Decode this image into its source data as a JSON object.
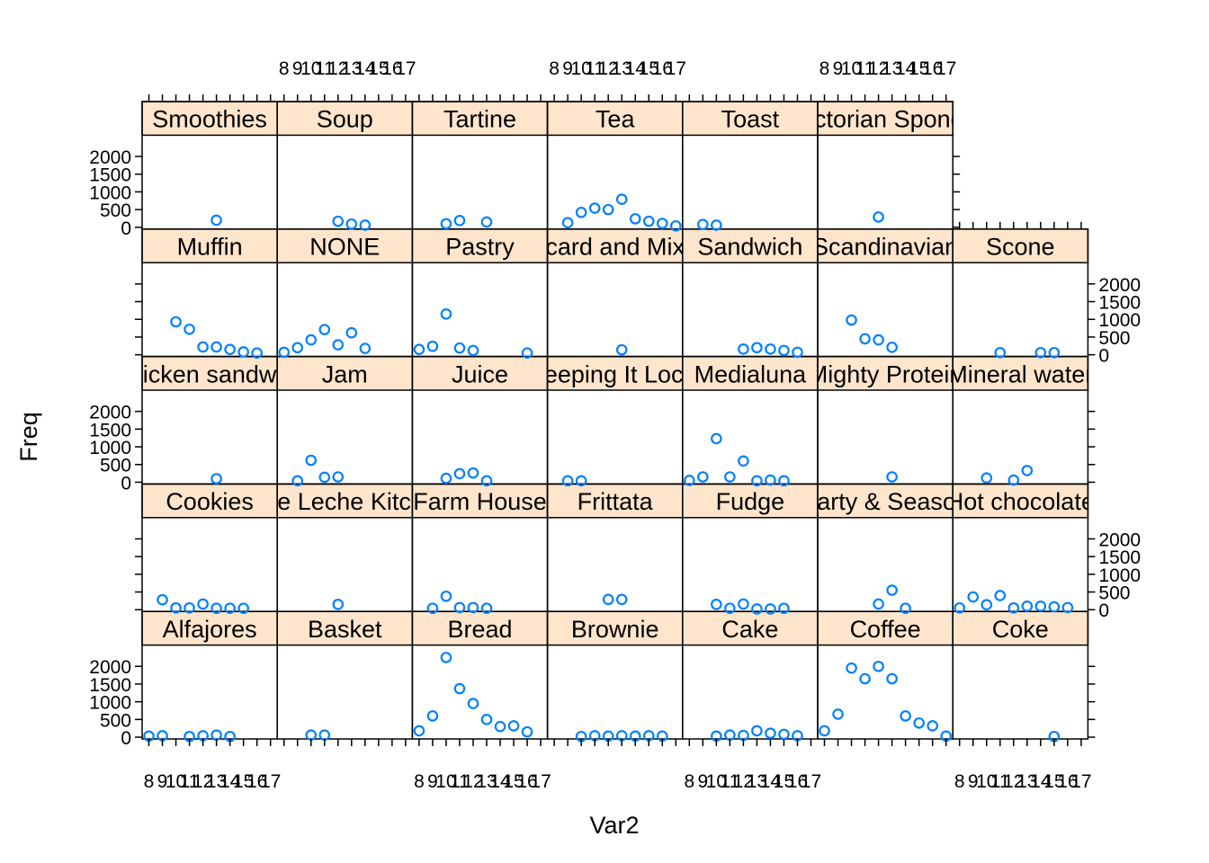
{
  "chart_data": {
    "type": "scatter",
    "layout": "lattice panels, 7 columns x 5 rows",
    "xlabel": "Var2",
    "ylabel": "Freq",
    "x_tick_labels": [
      "8",
      "9",
      "10",
      "11",
      "12",
      "13",
      "14",
      "15",
      "16",
      "17"
    ],
    "y_tick_labels": [
      "0",
      "500",
      "1000",
      "1500",
      "2000"
    ],
    "ylim": [
      -50,
      2600
    ],
    "xlim": [
      7.5,
      17.5
    ],
    "strip_color": "#ffe5cc",
    "point_color": "#0080ff",
    "panels": [
      {
        "name": "Alfajores",
        "x": [
          8,
          9,
          11,
          12,
          13,
          14
        ],
        "y": [
          30,
          40,
          20,
          40,
          60,
          20
        ]
      },
      {
        "name": "Basket",
        "x": [
          10,
          11
        ],
        "y": [
          60,
          60
        ]
      },
      {
        "name": "Bread",
        "x": [
          8,
          9,
          10,
          11,
          12,
          13,
          14,
          15,
          16
        ],
        "y": [
          180,
          600,
          2250,
          1370,
          950,
          500,
          300,
          320,
          150
        ]
      },
      {
        "name": "Brownie",
        "x": [
          10,
          11,
          12,
          13,
          14,
          15,
          16
        ],
        "y": [
          20,
          40,
          30,
          40,
          30,
          40,
          30
        ]
      },
      {
        "name": "Cake",
        "x": [
          10,
          11,
          12,
          13,
          14,
          15,
          16
        ],
        "y": [
          30,
          60,
          50,
          180,
          110,
          80,
          40
        ]
      },
      {
        "name": "Coffee",
        "x": [
          8,
          9,
          10,
          11,
          12,
          13,
          14,
          15,
          16,
          17
        ],
        "y": [
          180,
          650,
          1950,
          1650,
          2000,
          1650,
          600,
          400,
          320,
          30
        ]
      },
      {
        "name": "Coke",
        "x": [
          15
        ],
        "y": [
          20
        ]
      },
      {
        "name": "Cookies",
        "x": [
          9,
          10,
          11,
          12,
          13,
          14,
          15
        ],
        "y": [
          280,
          50,
          50,
          160,
          40,
          40,
          40
        ]
      },
      {
        "name": "Dulce de Leche Kitchen Pot",
        "x": [
          12
        ],
        "y": [
          150
        ]
      },
      {
        "name": "Farm House",
        "x": [
          9,
          10,
          11,
          12,
          13
        ],
        "y": [
          40,
          380,
          60,
          60,
          40
        ]
      },
      {
        "name": "Frittata",
        "x": [
          12,
          13
        ],
        "y": [
          290,
          290
        ]
      },
      {
        "name": "Fudge",
        "x": [
          10,
          11,
          12,
          13,
          14,
          15
        ],
        "y": [
          150,
          40,
          160,
          20,
          20,
          40
        ]
      },
      {
        "name": "Party & Season",
        "x": [
          12,
          13,
          14
        ],
        "y": [
          160,
          550,
          40
        ]
      },
      {
        "name": "Hot chocolate",
        "x": [
          8,
          9,
          10,
          11,
          12,
          13,
          14,
          15,
          16
        ],
        "y": [
          50,
          360,
          140,
          400,
          50,
          100,
          100,
          80,
          60
        ]
      },
      {
        "name": "Chicken sandwich",
        "x": [
          13
        ],
        "y": [
          100
        ]
      },
      {
        "name": "Jam",
        "x": [
          9,
          10,
          11,
          12
        ],
        "y": [
          40,
          620,
          140,
          150
        ]
      },
      {
        "name": "Juice",
        "x": [
          10,
          11,
          12,
          13
        ],
        "y": [
          110,
          240,
          260,
          40
        ]
      },
      {
        "name": "Keeping It Local",
        "x": [
          9,
          10
        ],
        "y": [
          40,
          40
        ]
      },
      {
        "name": "Medialuna",
        "x": [
          8,
          9,
          10,
          11,
          12,
          13,
          14,
          15
        ],
        "y": [
          50,
          150,
          1230,
          150,
          600,
          40,
          60,
          40
        ]
      },
      {
        "name": "Mighty Protein",
        "x": [
          13
        ],
        "y": [
          150
        ]
      },
      {
        "name": "Mineral water",
        "x": [
          10,
          12,
          13
        ],
        "y": [
          120,
          60,
          330
        ]
      },
      {
        "name": "Muffin",
        "x": [
          10,
          11,
          12,
          13,
          14,
          15,
          16
        ],
        "y": [
          930,
          720,
          220,
          220,
          150,
          80,
          50
        ]
      },
      {
        "name": "NONE",
        "x": [
          8,
          9,
          10,
          11,
          12,
          13,
          14
        ],
        "y": [
          70,
          200,
          420,
          710,
          280,
          620,
          180
        ]
      },
      {
        "name": "Pastry",
        "x": [
          8,
          9,
          10,
          11,
          12,
          16
        ],
        "y": [
          150,
          240,
          1150,
          190,
          120,
          50
        ]
      },
      {
        "name": "Postcard and Mix Box",
        "x": [
          13
        ],
        "y": [
          140
        ]
      },
      {
        "name": "Sandwich",
        "x": [
          12,
          13,
          14,
          15,
          16
        ],
        "y": [
          160,
          200,
          160,
          120,
          70
        ]
      },
      {
        "name": "Scandinavian",
        "x": [
          10,
          11,
          12,
          13
        ],
        "y": [
          980,
          450,
          420,
          210
        ]
      },
      {
        "name": "Scone",
        "x": [
          11,
          14,
          15
        ],
        "y": [
          60,
          60,
          60
        ]
      },
      {
        "name": "Smoothies",
        "x": [
          13
        ],
        "y": [
          200
        ]
      },
      {
        "name": "Soup",
        "x": [
          12,
          13,
          14
        ],
        "y": [
          170,
          90,
          60
        ]
      },
      {
        "name": "Tartine",
        "x": [
          10,
          11,
          13
        ],
        "y": [
          100,
          190,
          150
        ]
      },
      {
        "name": "Tea",
        "x": [
          9,
          10,
          11,
          12,
          13,
          14,
          15,
          16,
          17
        ],
        "y": [
          130,
          420,
          540,
          500,
          790,
          240,
          170,
          110,
          40
        ]
      },
      {
        "name": "Toast",
        "x": [
          9,
          10
        ],
        "y": [
          80,
          60
        ]
      },
      {
        "name": "Victorian Sponge",
        "x": [
          12
        ],
        "y": [
          290
        ]
      }
    ]
  }
}
